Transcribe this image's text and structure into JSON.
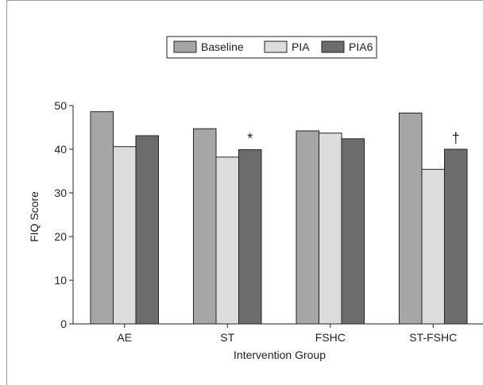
{
  "colors": {
    "frame": "#999999",
    "axis": "#222222",
    "Baseline": "#a6a6a6",
    "PIA": "#dcdcdc",
    "PIA6": "#6c6c6c"
  },
  "chart_data": {
    "type": "bar",
    "categories": [
      "AE",
      "ST",
      "FSHC",
      "ST-FSHC"
    ],
    "series": [
      {
        "name": "Baseline",
        "values": [
          48.6,
          44.7,
          44.2,
          48.3
        ]
      },
      {
        "name": "PIA",
        "values": [
          40.6,
          38.2,
          43.7,
          35.4
        ]
      },
      {
        "name": "PIA6",
        "values": [
          43.1,
          39.9,
          42.4,
          40.0
        ]
      }
    ],
    "xlabel": "Intervention Group",
    "ylabel": "FIQ Score",
    "ylim": [
      0,
      50
    ],
    "yticks": [
      "0",
      "10",
      "20",
      "30",
      "40",
      "50"
    ],
    "legend_position": "top-center",
    "grid": false,
    "annotations": [
      {
        "category": "ST",
        "series": "PIA6",
        "text": "*"
      },
      {
        "category": "ST-FSHC",
        "series": "PIA6",
        "text": "†"
      }
    ]
  }
}
